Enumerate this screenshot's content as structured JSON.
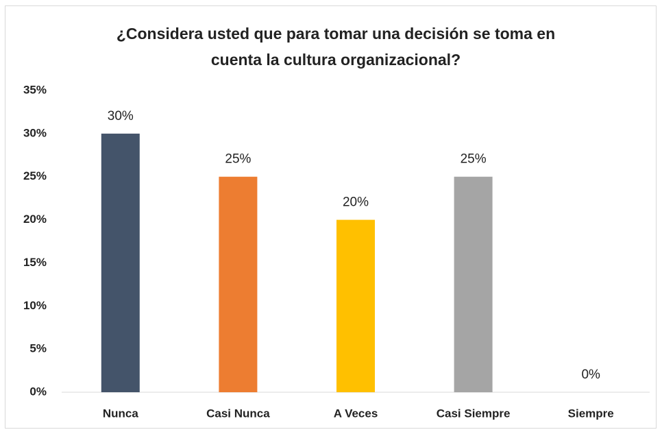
{
  "chart_data": {
    "type": "bar",
    "title": "¿Considera usted que para tomar una decisión se toma en cuenta la cultura organizacional?",
    "categories": [
      "Nunca",
      "Casi Nunca",
      "A Veces",
      "Casi Siempre",
      "Siempre"
    ],
    "values": [
      30,
      25,
      20,
      25,
      0
    ],
    "value_labels": [
      "30%",
      "25%",
      "20%",
      "25%",
      "0%"
    ],
    "colors": [
      "#44546a",
      "#ed7d31",
      "#ffc000",
      "#a5a5a5",
      "#5b9bd5"
    ],
    "ylim": [
      0,
      35
    ],
    "yticks": [
      {
        "value": 0,
        "label": "0%"
      },
      {
        "value": 5,
        "label": "5%"
      },
      {
        "value": 10,
        "label": "10%"
      },
      {
        "value": 15,
        "label": "15%"
      },
      {
        "value": 20,
        "label": "20%"
      },
      {
        "value": 25,
        "label": "25%"
      },
      {
        "value": 30,
        "label": "30%"
      },
      {
        "value": 35,
        "label": "35%"
      }
    ],
    "grid": false
  }
}
